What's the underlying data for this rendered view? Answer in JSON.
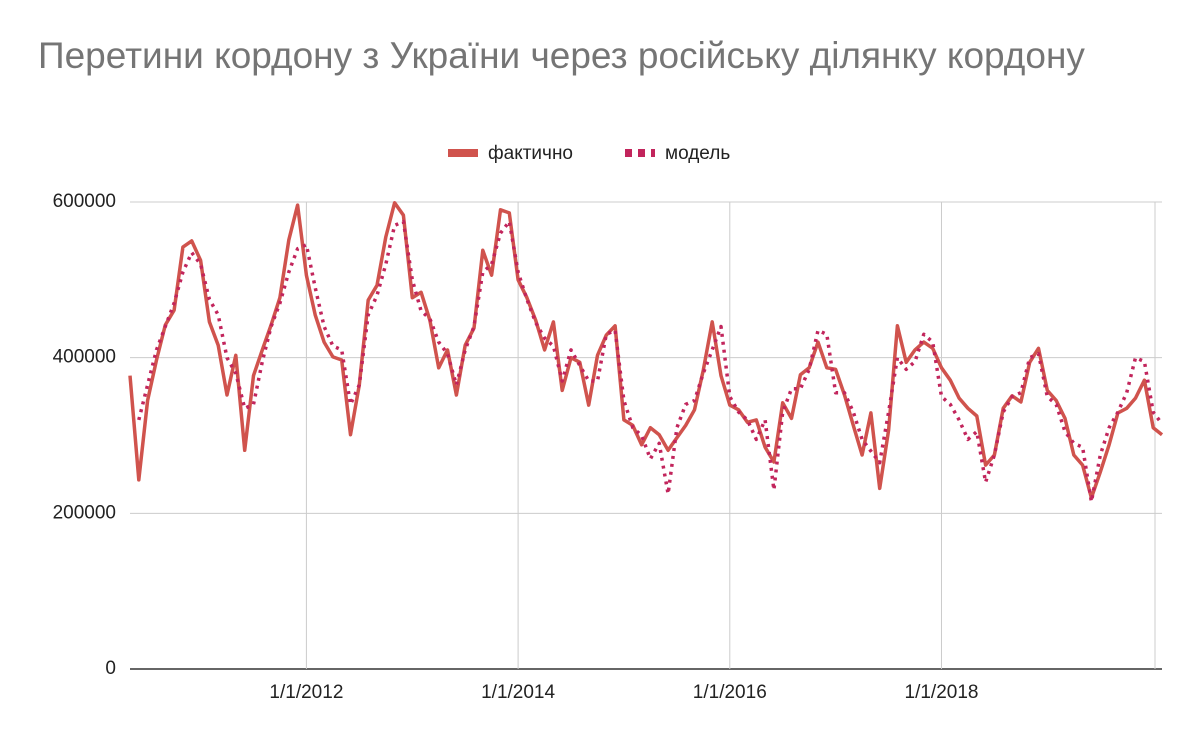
{
  "chart_data": {
    "type": "line",
    "title": "Перетини кордону з України через російську ділянку кордону",
    "x": [
      "2010-05-01",
      "2010-06-01",
      "2010-07-01",
      "2010-08-01",
      "2010-09-01",
      "2010-10-01",
      "2010-11-01",
      "2010-12-01",
      "2011-01-01",
      "2011-02-01",
      "2011-03-01",
      "2011-04-01",
      "2011-05-01",
      "2011-06-01",
      "2011-07-01",
      "2011-08-01",
      "2011-09-01",
      "2011-10-01",
      "2011-11-01",
      "2011-12-01",
      "2012-01-01",
      "2012-02-01",
      "2012-03-01",
      "2012-04-01",
      "2012-05-01",
      "2012-06-01",
      "2012-07-01",
      "2012-08-01",
      "2012-09-01",
      "2012-10-01",
      "2012-11-01",
      "2012-12-01",
      "2013-01-01",
      "2013-02-01",
      "2013-03-01",
      "2013-04-01",
      "2013-05-01",
      "2013-06-01",
      "2013-07-01",
      "2013-08-01",
      "2013-09-01",
      "2013-10-01",
      "2013-11-01",
      "2013-12-01",
      "2014-01-01",
      "2014-02-01",
      "2014-03-01",
      "2014-04-01",
      "2014-05-01",
      "2014-06-01",
      "2014-07-01",
      "2014-08-01",
      "2014-09-01",
      "2014-10-01",
      "2014-11-01",
      "2014-12-01",
      "2015-01-01",
      "2015-02-01",
      "2015-03-01",
      "2015-04-01",
      "2015-05-01",
      "2015-06-01",
      "2015-07-01",
      "2015-08-01",
      "2015-09-01",
      "2015-10-01",
      "2015-11-01",
      "2015-12-01",
      "2016-01-01",
      "2016-02-01",
      "2016-03-01",
      "2016-04-01",
      "2016-05-01",
      "2016-06-01",
      "2016-07-01",
      "2016-08-01",
      "2016-09-01",
      "2016-10-01",
      "2016-11-01",
      "2016-12-01",
      "2017-01-01",
      "2017-02-01",
      "2017-03-01",
      "2017-04-01",
      "2017-05-01",
      "2017-06-01",
      "2017-07-01",
      "2017-08-01",
      "2017-09-01",
      "2017-10-01",
      "2017-11-01",
      "2017-12-01",
      "2018-01-01",
      "2018-02-01",
      "2018-03-01",
      "2018-04-01",
      "2018-05-01",
      "2018-06-01",
      "2018-07-01",
      "2018-08-01",
      "2018-09-01",
      "2018-10-01",
      "2018-11-01",
      "2018-12-01",
      "2019-01-01",
      "2019-02-01",
      "2019-03-01",
      "2019-04-01",
      "2019-05-01",
      "2019-06-01",
      "2019-07-01",
      "2019-08-01",
      "2019-09-01",
      "2019-10-01",
      "2019-11-01",
      "2019-12-01",
      "2020-01-01",
      "2020-02-01"
    ],
    "series": [
      {
        "name": "фактично",
        "color": "#d0534d",
        "style": "solid",
        "values": [
          377000,
          243000,
          345000,
          397000,
          442000,
          461000,
          542000,
          550000,
          525000,
          446000,
          416000,
          352000,
          403000,
          281000,
          377000,
          410000,
          442000,
          477000,
          551000,
          596000,
          506000,
          455000,
          420000,
          401000,
          397000,
          301000,
          365000,
          474000,
          493000,
          555000,
          599000,
          583000,
          477000,
          484000,
          448000,
          387000,
          410000,
          352000,
          416000,
          438000,
          538000,
          506000,
          590000,
          586000,
          500000,
          477000,
          448000,
          410000,
          446000,
          358000,
          400000,
          394000,
          339000,
          403000,
          429000,
          441000,
          320000,
          313000,
          288000,
          310000,
          301000,
          281000,
          297000,
          313000,
          333000,
          384000,
          446000,
          377000,
          339000,
          333000,
          317000,
          320000,
          285000,
          266000,
          342000,
          322000,
          378000,
          387000,
          420000,
          387000,
          385000,
          352000,
          313000,
          275000,
          329000,
          232000,
          307000,
          441000,
          394000,
          410000,
          420000,
          412000,
          387000,
          371000,
          348000,
          335000,
          325000,
          262000,
          275000,
          335000,
          351000,
          343000,
          394000,
          412000,
          358000,
          345000,
          322000,
          275000,
          262000,
          220000,
          253000,
          288000,
          329000,
          335000,
          348000,
          371000,
          310000,
          301000
        ]
      },
      {
        "name": "модель",
        "color": "#c2255c",
        "style": "dotted",
        "values": [
          null,
          320000,
          365000,
          410000,
          440000,
          470000,
          510000,
          535000,
          520000,
          475000,
          455000,
          400000,
          380000,
          335000,
          340000,
          395000,
          440000,
          470000,
          510000,
          540000,
          545000,
          490000,
          440000,
          415000,
          410000,
          340000,
          365000,
          455000,
          480000,
          520000,
          570000,
          575000,
          500000,
          460000,
          450000,
          420000,
          405000,
          365000,
          410000,
          440000,
          510000,
          520000,
          560000,
          575000,
          510000,
          475000,
          445000,
          425000,
          415000,
          370000,
          410000,
          390000,
          370000,
          370000,
          430000,
          435000,
          345000,
          310000,
          300000,
          270000,
          290000,
          225000,
          310000,
          340000,
          345000,
          380000,
          410000,
          440000,
          350000,
          330000,
          320000,
          295000,
          320000,
          230000,
          330000,
          360000,
          360000,
          385000,
          435000,
          430000,
          355000,
          355000,
          330000,
          295000,
          280000,
          265000,
          330000,
          400000,
          385000,
          395000,
          430000,
          420000,
          350000,
          340000,
          320000,
          295000,
          305000,
          240000,
          275000,
          330000,
          350000,
          355000,
          400000,
          405000,
          350000,
          340000,
          305000,
          290000,
          285000,
          215000,
          275000,
          310000,
          330000,
          355000,
          400000,
          395000,
          330000,
          315000
        ]
      }
    ],
    "xlim": [
      "2010-05-01",
      "2020-02-01"
    ],
    "xticks": [
      {
        "value": "2012-01-01",
        "label": "1/1/2012"
      },
      {
        "value": "2014-01-01",
        "label": "1/1/2014"
      },
      {
        "value": "2016-01-01",
        "label": "1/1/2016"
      },
      {
        "value": "2018-01-01",
        "label": "1/1/2018"
      }
    ],
    "ylim": [
      0,
      600000
    ],
    "yticks": [
      0,
      200000,
      400000,
      600000
    ],
    "grid": true,
    "legend": "top"
  }
}
